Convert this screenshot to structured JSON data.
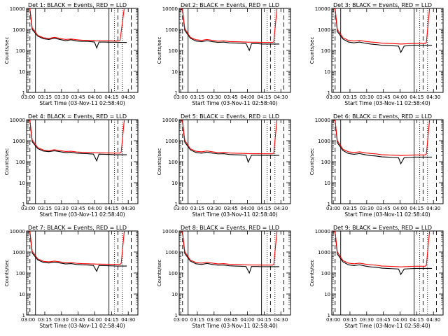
{
  "figure": {
    "x_axis_label": "Start Time (03-Nov-11 02:58:40)",
    "y_axis_label": "Counts/sec",
    "x_tick_labels": [
      "03:00",
      "03:15",
      "03:30",
      "03:45",
      "04:00",
      "04:15",
      "04:30"
    ],
    "y_tick_labels": [
      "1",
      "10",
      "100",
      "1000",
      "10000"
    ],
    "colors": {
      "events": "#000000",
      "lld": "#ff0000"
    }
  },
  "chart_data": [
    {
      "type": "line",
      "title": "Det 1:  BLACK = Events, RED = LLD",
      "xlabel": "Start Time (03-Nov-11 02:58:40)",
      "ylabel": "Counts/sec",
      "x_minutes": [
        0,
        3,
        5,
        10,
        15,
        20,
        25,
        30,
        35,
        40,
        45,
        50,
        55,
        58,
        61,
        63,
        65,
        70,
        75,
        80,
        83,
        84,
        88,
        90
      ],
      "xlim_minutes": [
        0,
        100
      ],
      "ylim": [
        1,
        10000
      ],
      "yscale": "log",
      "series": [
        {
          "name": "Events",
          "color": "#000000",
          "values": [
            12000,
            9000,
            1000,
            480,
            360,
            330,
            380,
            330,
            290,
            320,
            280,
            270,
            270,
            260,
            250,
            130,
            250,
            250,
            245,
            245,
            240,
            240,
            240,
            240
          ]
        },
        {
          "name": "LLD",
          "color": "#ff0000",
          "values": [
            12000,
            9500,
            1200,
            520,
            400,
            370,
            420,
            370,
            330,
            350,
            320,
            305,
            300,
            300,
            295,
            280,
            290,
            285,
            285,
            280,
            280,
            300,
            13000,
            13000
          ]
        }
      ],
      "vlines_minutes": {
        "solid": [
          8,
          74
        ],
        "dashed": [
          3,
          82,
          94
        ],
        "dotted": [
          79,
          86
        ]
      }
    },
    {
      "type": "line",
      "title": "Det 2:  BLACK = Events, RED = LLD",
      "xlabel": "Start Time (03-Nov-11 02:58:40)",
      "ylabel": "Counts/sec",
      "x_minutes": [
        0,
        3,
        5,
        10,
        15,
        20,
        25,
        30,
        35,
        40,
        45,
        50,
        55,
        60,
        63,
        65,
        70,
        75,
        80,
        84,
        85,
        88,
        90
      ],
      "xlim_minutes": [
        0,
        100
      ],
      "ylim": [
        1,
        10000
      ],
      "yscale": "log",
      "series": [
        {
          "name": "Events",
          "color": "#000000",
          "values": [
            12000,
            8000,
            900,
            380,
            280,
            260,
            290,
            260,
            240,
            250,
            230,
            225,
            220,
            215,
            100,
            210,
            210,
            200,
            200,
            200,
            200,
            200,
            200
          ]
        },
        {
          "name": "LLD",
          "color": "#ff0000",
          "values": [
            12000,
            8500,
            1100,
            420,
            320,
            300,
            330,
            300,
            275,
            285,
            265,
            260,
            255,
            250,
            245,
            245,
            245,
            240,
            240,
            240,
            260,
            12000,
            12000
          ]
        }
      ],
      "vlines_minutes": {
        "solid": [
          8,
          74
        ],
        "dashed": [
          3,
          82,
          94
        ],
        "dotted": [
          79,
          86
        ]
      }
    },
    {
      "type": "line",
      "title": "Det 3:  BLACK = Events, RED = LLD",
      "xlabel": "Start Time (03-Nov-11 02:58:40)",
      "ylabel": "Counts/sec",
      "x_minutes": [
        0,
        3,
        5,
        10,
        15,
        20,
        25,
        30,
        35,
        40,
        45,
        50,
        55,
        60,
        62,
        65,
        70,
        75,
        80,
        84,
        85,
        88,
        90
      ],
      "xlim_minutes": [
        0,
        100
      ],
      "ylim": [
        1,
        10000
      ],
      "yscale": "log",
      "series": [
        {
          "name": "Events",
          "color": "#000000",
          "values": [
            12000,
            9000,
            800,
            350,
            250,
            230,
            250,
            220,
            200,
            190,
            175,
            170,
            165,
            160,
            80,
            160,
            170,
            175,
            175,
            175,
            175,
            175,
            175
          ]
        },
        {
          "name": "LLD",
          "color": "#ff0000",
          "values": [
            12000,
            9500,
            1000,
            400,
            300,
            280,
            300,
            270,
            250,
            240,
            220,
            215,
            210,
            205,
            200,
            205,
            210,
            215,
            215,
            215,
            240,
            12000,
            12000
          ]
        }
      ],
      "vlines_minutes": {
        "solid": [
          8,
          74
        ],
        "dashed": [
          3,
          82,
          94
        ],
        "dotted": [
          79,
          86
        ]
      }
    },
    {
      "type": "line",
      "title": "Det 4:  BLACK = Events, RED = LLD",
      "xlabel": "Start Time (03-Nov-11 02:58:40)",
      "ylabel": "Counts/sec",
      "x_minutes": [
        0,
        3,
        5,
        10,
        15,
        20,
        25,
        30,
        35,
        40,
        45,
        50,
        55,
        60,
        63,
        65,
        70,
        75,
        80,
        84,
        85,
        88,
        90
      ],
      "xlim_minutes": [
        0,
        100
      ],
      "ylim": [
        1,
        10000
      ],
      "yscale": "log",
      "series": [
        {
          "name": "Events",
          "color": "#000000",
          "values": [
            12000,
            8500,
            900,
            420,
            320,
            300,
            330,
            300,
            270,
            280,
            255,
            245,
            240,
            230,
            110,
            230,
            225,
            220,
            215,
            215,
            215,
            215,
            215
          ]
        },
        {
          "name": "LLD",
          "color": "#ff0000",
          "values": [
            12000,
            9000,
            1100,
            470,
            360,
            340,
            370,
            340,
            305,
            315,
            290,
            280,
            275,
            270,
            265,
            265,
            262,
            260,
            258,
            258,
            290,
            13000,
            13000
          ]
        }
      ],
      "vlines_minutes": {
        "solid": [
          8,
          74
        ],
        "dashed": [
          3,
          82,
          94
        ],
        "dotted": [
          79,
          86
        ]
      }
    },
    {
      "type": "line",
      "title": "Det 5:  BLACK = Events, RED = LLD",
      "xlabel": "Start Time (03-Nov-11 02:58:40)",
      "ylabel": "Counts/sec",
      "x_minutes": [
        0,
        3,
        5,
        10,
        15,
        20,
        25,
        30,
        35,
        40,
        45,
        50,
        55,
        60,
        62,
        65,
        70,
        75,
        80,
        84,
        85,
        88,
        90
      ],
      "xlim_minutes": [
        0,
        100
      ],
      "ylim": [
        1,
        10000
      ],
      "yscale": "log",
      "series": [
        {
          "name": "Events",
          "color": "#000000",
          "values": [
            12000,
            8000,
            850,
            370,
            275,
            255,
            285,
            255,
            235,
            240,
            220,
            215,
            210,
            205,
            95,
            205,
            205,
            200,
            200,
            200,
            200,
            200,
            200
          ]
        },
        {
          "name": "LLD",
          "color": "#ff0000",
          "values": [
            12000,
            8500,
            1050,
            410,
            315,
            295,
            325,
            295,
            270,
            280,
            260,
            255,
            250,
            245,
            240,
            240,
            240,
            238,
            238,
            238,
            260,
            12000,
            12000
          ]
        }
      ],
      "vlines_minutes": {
        "solid": [
          8,
          74
        ],
        "dashed": [
          3,
          82,
          94
        ],
        "dotted": [
          79,
          86
        ]
      }
    },
    {
      "type": "line",
      "title": "Det 6:  BLACK = Events, RED = LLD",
      "xlabel": "Start Time (03-Nov-11 02:58:40)",
      "ylabel": "Counts/sec",
      "x_minutes": [
        0,
        3,
        5,
        10,
        15,
        20,
        25,
        30,
        35,
        40,
        45,
        50,
        55,
        60,
        62,
        65,
        70,
        75,
        80,
        84,
        85,
        88,
        90
      ],
      "xlim_minutes": [
        0,
        100
      ],
      "ylim": [
        1,
        10000
      ],
      "yscale": "log",
      "series": [
        {
          "name": "Events",
          "color": "#000000",
          "values": [
            12000,
            8500,
            800,
            340,
            245,
            225,
            245,
            215,
            195,
            185,
            170,
            165,
            160,
            155,
            80,
            155,
            160,
            165,
            165,
            165,
            165,
            165,
            165
          ]
        },
        {
          "name": "LLD",
          "color": "#ff0000",
          "values": [
            12000,
            9000,
            1000,
            390,
            295,
            275,
            295,
            265,
            245,
            235,
            215,
            210,
            205,
            200,
            195,
            200,
            205,
            210,
            210,
            210,
            235,
            12000,
            12000
          ]
        }
      ],
      "vlines_minutes": {
        "solid": [
          8,
          74
        ],
        "dashed": [
          3,
          82,
          94
        ],
        "dotted": [
          79,
          86
        ]
      }
    },
    {
      "type": "line",
      "title": "Det 7:  BLACK = Events, RED = LLD",
      "xlabel": "Start Time (03-Nov-11 02:58:40)",
      "ylabel": "Counts/sec",
      "x_minutes": [
        0,
        3,
        5,
        10,
        15,
        20,
        25,
        30,
        35,
        40,
        45,
        50,
        55,
        60,
        63,
        65,
        70,
        75,
        80,
        84,
        85,
        88,
        90
      ],
      "xlim_minutes": [
        0,
        100
      ],
      "ylim": [
        1,
        10000
      ],
      "yscale": "log",
      "series": [
        {
          "name": "Events",
          "color": "#000000",
          "values": [
            12000,
            8500,
            900,
            420,
            320,
            300,
            330,
            300,
            270,
            280,
            255,
            245,
            240,
            230,
            120,
            230,
            225,
            220,
            215,
            215,
            215,
            215,
            215
          ]
        },
        {
          "name": "LLD",
          "color": "#ff0000",
          "values": [
            12000,
            9000,
            1100,
            470,
            360,
            340,
            370,
            340,
            305,
            315,
            290,
            280,
            275,
            270,
            265,
            265,
            262,
            260,
            258,
            258,
            290,
            13000,
            13000
          ]
        }
      ],
      "vlines_minutes": {
        "solid": [
          8,
          74
        ],
        "dashed": [
          3,
          82,
          94
        ],
        "dotted": [
          79,
          86
        ]
      }
    },
    {
      "type": "line",
      "title": "Det 8:  BLACK = Events, RED = LLD",
      "xlabel": "Start Time (03-Nov-11 02:58:40)",
      "ylabel": "Counts/sec",
      "x_minutes": [
        0,
        3,
        5,
        10,
        15,
        20,
        25,
        30,
        35,
        40,
        45,
        50,
        55,
        60,
        63,
        65,
        70,
        75,
        80,
        84,
        85,
        88,
        90
      ],
      "xlim_minutes": [
        0,
        100
      ],
      "ylim": [
        1,
        10000
      ],
      "yscale": "log",
      "series": [
        {
          "name": "Events",
          "color": "#000000",
          "values": [
            12000,
            8000,
            850,
            370,
            275,
            255,
            285,
            255,
            235,
            240,
            220,
            215,
            210,
            205,
            100,
            205,
            205,
            200,
            200,
            200,
            200,
            200,
            200
          ]
        },
        {
          "name": "LLD",
          "color": "#ff0000",
          "values": [
            12000,
            8500,
            1050,
            410,
            315,
            295,
            325,
            295,
            270,
            280,
            260,
            255,
            250,
            245,
            240,
            240,
            240,
            238,
            238,
            238,
            260,
            12000,
            12000
          ]
        }
      ],
      "vlines_minutes": {
        "solid": [
          8,
          74
        ],
        "dashed": [
          3,
          82,
          94
        ],
        "dotted": [
          79,
          86
        ]
      }
    },
    {
      "type": "line",
      "title": "Det 9:  BLACK = Events, RED = LLD",
      "xlabel": "Start Time (03-Nov-11 02:58:40)",
      "ylabel": "Counts/sec",
      "x_minutes": [
        0,
        3,
        5,
        10,
        15,
        20,
        25,
        30,
        35,
        40,
        45,
        50,
        55,
        60,
        62,
        65,
        70,
        75,
        80,
        84,
        85,
        88,
        90
      ],
      "xlim_minutes": [
        0,
        100
      ],
      "ylim": [
        1,
        10000
      ],
      "yscale": "log",
      "series": [
        {
          "name": "Events",
          "color": "#000000",
          "values": [
            12000,
            8500,
            800,
            340,
            245,
            225,
            245,
            215,
            195,
            185,
            170,
            165,
            160,
            155,
            85,
            155,
            160,
            165,
            165,
            165,
            165,
            165,
            165
          ]
        },
        {
          "name": "LLD",
          "color": "#ff0000",
          "values": [
            12000,
            9000,
            1000,
            390,
            295,
            275,
            295,
            265,
            245,
            235,
            215,
            210,
            205,
            200,
            195,
            200,
            205,
            210,
            210,
            210,
            235,
            12000,
            12000
          ]
        }
      ],
      "vlines_minutes": {
        "solid": [
          8,
          74
        ],
        "dashed": [
          3,
          82,
          94
        ],
        "dotted": [
          79,
          86
        ]
      }
    }
  ]
}
